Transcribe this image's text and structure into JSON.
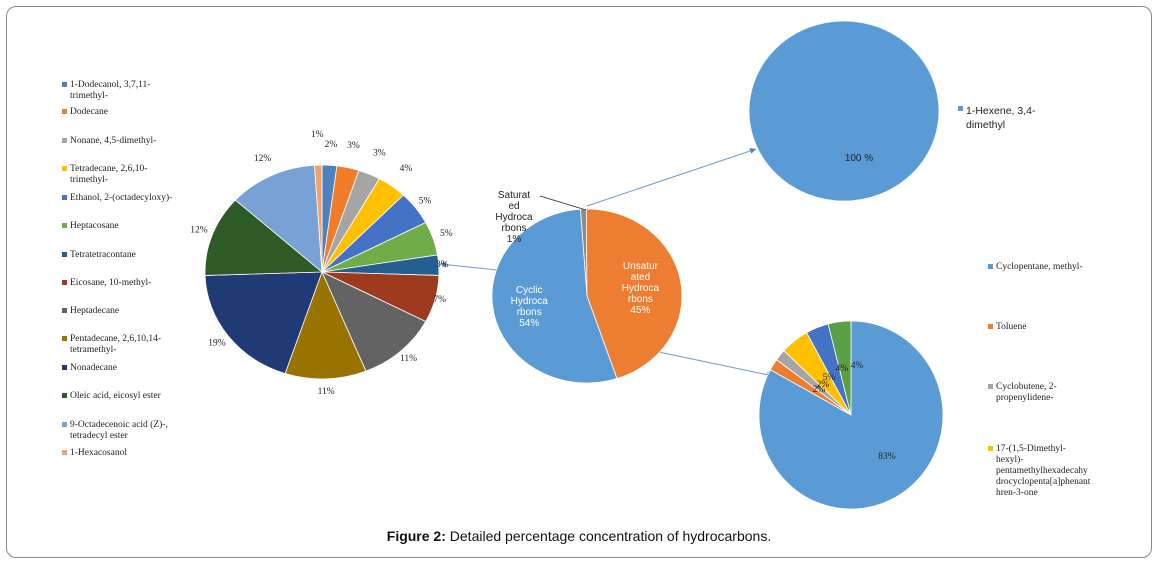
{
  "caption": {
    "label": "Figure 2:",
    "text": " Detailed percentage concentration of hydrocarbons."
  },
  "chart_data": [
    {
      "type": "pie",
      "name": "saturated",
      "labels": [
        "1-Dodecanol, 3,7,11-\ntrimethyl-",
        "Dodecane",
        "Nonane, 4,5-dimethyl-",
        "Tetradecane, 2,6,10-\ntrimethyl-",
        "Ethanol, 2-(octadecyloxy)-",
        "Heptacosane",
        "Tetratetracontane",
        "Eicosane, 10-methyl-",
        "Heptadecane",
        "Pentadecane, 2,6,10,14-\ntetramethyl-",
        "Nonadecane",
        "Oleic acid, eicosyl ester",
        "9-Octadecenoic acid (Z)-,\ntetradecyl ester",
        "1-Hexacosanol"
      ],
      "values": [
        2,
        3,
        3,
        4,
        5,
        5,
        3,
        7,
        11,
        11,
        19,
        12,
        12,
        1
      ],
      "data_labels": [
        "2%",
        "3%",
        "3%",
        "4%",
        "5%",
        "5%",
        "3%",
        "7%",
        "11%",
        "11%",
        "19%",
        "12%",
        "12%",
        "1%"
      ],
      "colors": [
        "#4f81bd",
        "#f07c2a",
        "#a5a5a5",
        "#ffc000",
        "#4472c4",
        "#70ad47",
        "#255e91",
        "#9e3a1e",
        "#636363",
        "#997300",
        "#1f3a74",
        "#2e5b25",
        "#78a2d6",
        "#f4a26d"
      ]
    },
    {
      "type": "pie",
      "name": "hydrocarbon-classes",
      "labels": [
        "Saturat\ned\nHydroca\nrbons\n1%",
        "Unsatur\nated\nHydroca\nrbons\n45%",
        "Cyclic\nHydroca\nrbons\n54%"
      ],
      "values": [
        1,
        45,
        54
      ],
      "colors": [
        "#8c8c8c",
        "#ed7d31",
        "#5b9bd5"
      ]
    },
    {
      "type": "pie",
      "name": "unsaturated",
      "labels": [
        "1-Hexene, 3,4-\ndimethyl"
      ],
      "values": [
        100
      ],
      "data_labels": [
        "100 %"
      ],
      "colors": [
        "#5b9bd5"
      ]
    },
    {
      "type": "pie",
      "name": "cyclic",
      "labels": [
        "Cyclopentane, methyl-",
        "Toluene",
        "Cyclobutene, 2-\npropenylidene-",
        "17-(1,5-Dimethyl-\nhexyl)-\npentamethylhexadecahy\ndrocyclopenta[a]phenant\nhren-3-one",
        "",
        ""
      ],
      "values": [
        83,
        2,
        2,
        5,
        4,
        4
      ],
      "data_labels": [
        "83%",
        "2%",
        "2%",
        "5%",
        "4%",
        "4%"
      ],
      "colors": [
        "#5b9bd5",
        "#ed7d31",
        "#a5a5a5",
        "#ffc000",
        "#4472c4",
        "#5aa043"
      ]
    }
  ]
}
